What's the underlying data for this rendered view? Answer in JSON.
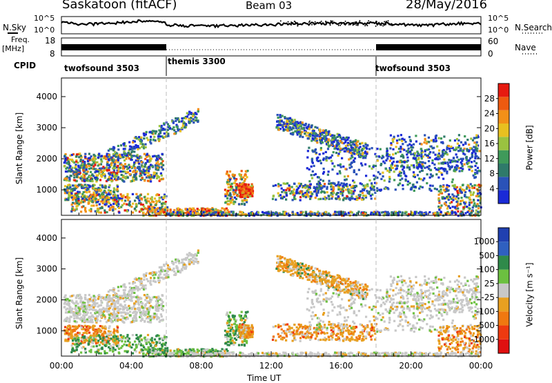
{
  "header": {
    "station": "Saskatoon (fitACF)",
    "beam": "Beam 03",
    "date": "28/May/2016"
  },
  "top_panels": {
    "nsky_label": "N.Sky",
    "nsearch_label": "N.Search",
    "noise_ticks": [
      "10^5",
      "10^0"
    ],
    "freq_label_line1": "Freq.",
    "freq_label_line2": "[MHz]",
    "freq_ticks": [
      "18",
      "8"
    ],
    "nave_label": "Nave",
    "nave_ticks": [
      "60",
      "0"
    ],
    "cpid_label": "CPID",
    "cpid_segments": [
      {
        "label": "twofsound 3503",
        "start": 0,
        "end": 6
      },
      {
        "label": "themis 3300",
        "start": 6,
        "end": 18
      },
      {
        "label": "twofsound 3503",
        "start": 18,
        "end": 24
      }
    ]
  },
  "chart_data": [
    {
      "type": "heatmap",
      "title": "",
      "ylabel": "Slant Range [km]",
      "xlabel": "",
      "xlim": [
        0,
        24
      ],
      "ylim": [
        180,
        4600
      ],
      "yticks": [
        1000,
        2000,
        3000,
        4000
      ],
      "colorbar": {
        "label": "Power [dB]",
        "ticks": [
          4,
          8,
          12,
          16,
          20,
          24,
          28
        ],
        "colors": [
          "#1a2ad6",
          "#2a52b8",
          "#2f7a6a",
          "#3f9a5a",
          "#9ac240",
          "#e8c020",
          "#f29018",
          "#ee5a10",
          "#e61a10"
        ]
      }
    },
    {
      "type": "heatmap",
      "title": "",
      "ylabel": "Slant Range [km]",
      "xlabel": "Time UT",
      "xlim": [
        0,
        24
      ],
      "ylim": [
        180,
        4600
      ],
      "yticks": [
        1000,
        2000,
        3000,
        4000
      ],
      "xticks": [
        "00:00",
        "04:00",
        "08:00",
        "12:00",
        "16:00",
        "20:00",
        "00:00"
      ],
      "colorbar": {
        "label": "Velocity [m s⁻¹]",
        "ticks": [
          1000,
          500,
          100,
          25,
          -25,
          -100,
          -500,
          -1000
        ],
        "colors": [
          "#2040b0",
          "#2f60c0",
          "#2f8a4a",
          "#6cc040",
          "#c8c8c8",
          "#e8a020",
          "#f07810",
          "#ee3a10",
          "#e01010"
        ]
      }
    }
  ]
}
